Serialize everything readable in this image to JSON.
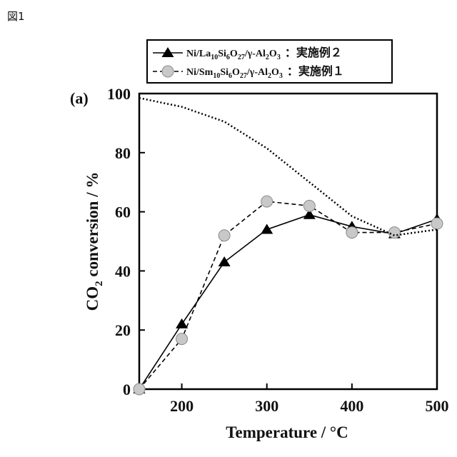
{
  "figure_label": "図1",
  "chart_data": {
    "type": "line",
    "panel_label": "(a)",
    "xlabel": "Temperature / °C",
    "ylabel": {
      "base": "CO",
      "sub": "2",
      "rest": "conversion / %"
    },
    "xlim": [
      150,
      500
    ],
    "ylim": [
      0,
      100
    ],
    "x_ticks": [
      200,
      300,
      400,
      500
    ],
    "y_ticks": [
      0,
      20,
      40,
      60,
      80,
      100
    ],
    "grid": false,
    "legend_position": "top",
    "series": [
      {
        "key": "la",
        "legend": {
          "parts": [
            {
              "t": "Ni/La"
            },
            {
              "t": "10",
              "sub": true
            },
            {
              "t": "Si"
            },
            {
              "t": "6",
              "sub": true
            },
            {
              "t": "O"
            },
            {
              "t": "27",
              "sub": true
            },
            {
              "t": "/γ-Al"
            },
            {
              "t": "2",
              "sub": true
            },
            {
              "t": "O"
            },
            {
              "t": "3",
              "sub": true
            }
          ],
          "tag": "：実施例２"
        },
        "marker": "triangle",
        "line_style": "solid",
        "color": "#000000",
        "x": [
          150,
          200,
          250,
          300,
          350,
          400,
          450,
          500
        ],
        "y": [
          0,
          22,
          43,
          54,
          59,
          55,
          52.5,
          57.5
        ]
      },
      {
        "key": "sm",
        "legend": {
          "parts": [
            {
              "t": "Ni/Sm"
            },
            {
              "t": "10",
              "sub": true
            },
            {
              "t": "Si"
            },
            {
              "t": "6",
              "sub": true
            },
            {
              "t": "O"
            },
            {
              "t": "27",
              "sub": true
            },
            {
              "t": "/γ-Al"
            },
            {
              "t": "2",
              "sub": true
            },
            {
              "t": "O"
            },
            {
              "t": "3",
              "sub": true
            }
          ],
          "tag": "：実施例１"
        },
        "marker": "circle",
        "marker_color": "#c8c8c8",
        "line_style": "dashed",
        "color": "#000000",
        "x": [
          150,
          200,
          250,
          300,
          350,
          400,
          450,
          500
        ],
        "y": [
          0,
          17,
          52,
          63.5,
          62,
          53,
          53,
          56
        ]
      },
      {
        "key": "eq",
        "marker": "none",
        "line_style": "dotted",
        "color": "#000000",
        "x": [
          150,
          200,
          250,
          300,
          350,
          400,
          450,
          500
        ],
        "y": [
          98.5,
          95.5,
          90.5,
          81.5,
          70,
          58.5,
          52,
          54
        ]
      }
    ]
  }
}
